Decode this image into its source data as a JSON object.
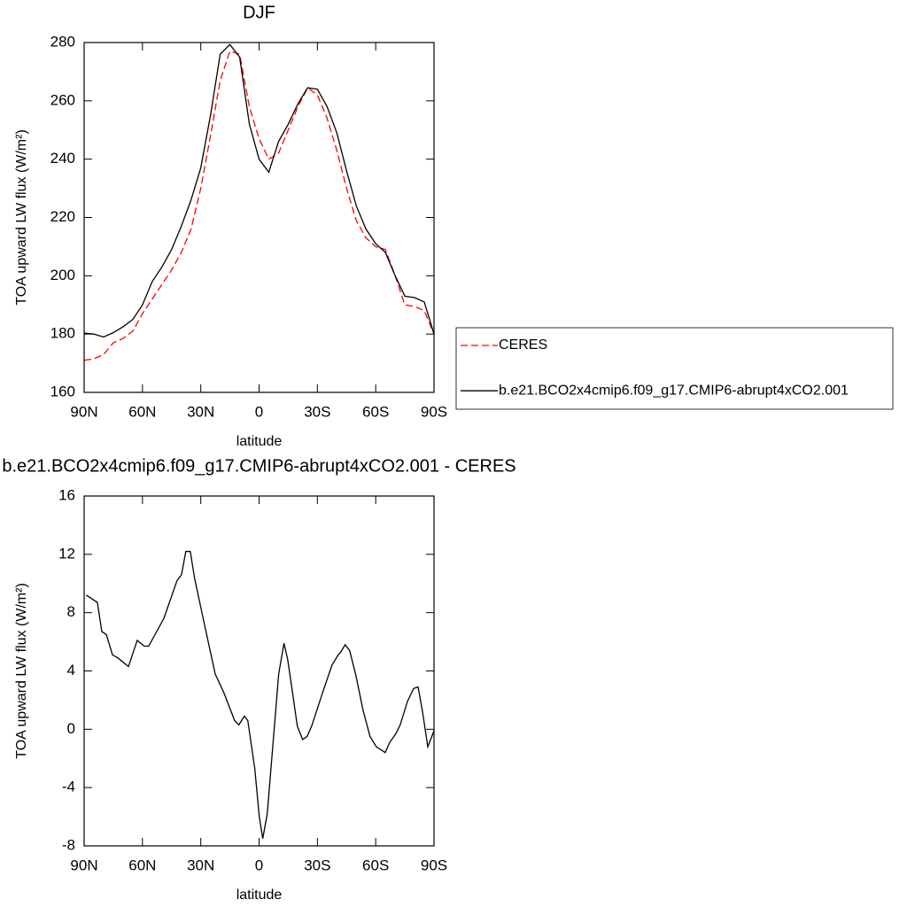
{
  "chart_data": [
    {
      "type": "line",
      "title": "DJF",
      "x_label": "latitude",
      "y_label": "TOA upward LW flux (W/m²)",
      "x": [
        90,
        85,
        80,
        75,
        70,
        65,
        60,
        55,
        50,
        45,
        40,
        35,
        30,
        25,
        20,
        15,
        10,
        5,
        0,
        -5,
        -10,
        -15,
        -20,
        -25,
        -30,
        -35,
        -40,
        -45,
        -50,
        -55,
        -60,
        -65,
        -70,
        -75,
        -80,
        -85,
        -90
      ],
      "series": [
        {
          "name": "CERES",
          "color": "#ff0000",
          "dashed": true,
          "values": [
            171,
            171.5,
            173,
            177,
            178.5,
            181,
            187,
            192,
            197,
            202,
            208,
            216,
            230,
            248,
            267,
            277,
            276,
            258,
            247,
            240,
            242,
            250,
            258,
            264.5,
            262,
            254,
            243,
            230,
            219,
            213,
            210,
            209,
            200,
            190,
            189.5,
            188,
            180
          ]
        },
        {
          "name": "b.e21.BCO2x4cmip6.f09_g17.CMIP6-abrupt4xCO2.001",
          "color": "#000000",
          "dashed": false,
          "values": [
            180.3,
            180,
            179,
            180.5,
            182.5,
            185,
            190,
            198,
            203,
            209,
            217,
            226,
            237,
            255,
            276,
            279.3,
            275,
            252,
            240,
            235.5,
            246,
            252,
            259,
            264.5,
            264,
            258,
            249,
            236,
            224,
            216,
            211,
            208,
            200,
            193,
            192.5,
            191,
            180
          ]
        }
      ],
      "xlim": [
        90,
        -90
      ],
      "xticks": [
        {
          "value": 90,
          "label": "90N"
        },
        {
          "value": 60,
          "label": "60N"
        },
        {
          "value": 30,
          "label": "30N"
        },
        0,
        {
          "value": -30,
          "label": "30S"
        },
        {
          "value": -60,
          "label": "60S"
        },
        {
          "value": -90,
          "label": "90S"
        }
      ],
      "ylim": [
        160,
        280
      ],
      "yticks": [
        160,
        180,
        200,
        220,
        240,
        260,
        280
      ],
      "legend": "right"
    },
    {
      "type": "line",
      "title": "b.e21.BCO2x4cmip6.f09_g17.CMIP6-abrupt4xCO2.001 - CERES",
      "x_label": "latitude",
      "y_label": "TOA upward LW flux (W/m²)",
      "x": [
        89,
        87.7,
        83.2,
        80.9,
        78.6,
        75.4,
        72.7,
        67.2,
        62.7,
        59.1,
        56.8,
        49.0,
        42.2,
        39.9,
        37.7,
        35.4,
        33.1,
        28.6,
        22.6,
        18.1,
        12.6,
        10.4,
        7.6,
        5.8,
        2.2,
        -0.1,
        -1.9,
        -4.2,
        -10.1,
        -12.8,
        -14.7,
        -17.0,
        -19.7,
        -22.4,
        -24.7,
        -27.0,
        -32.9,
        -37.5,
        -40.7,
        -42.0,
        -44.3,
        -46.6,
        -49.8,
        -53.5,
        -57.1,
        -60.3,
        -64.9,
        -67.2,
        -70.4,
        -72.6,
        -76.3,
        -79.5,
        -81.8,
        -84.1,
        -86.8,
        -90
      ],
      "values": [
        9.2,
        9.1,
        8.7,
        6.7,
        6.5,
        5.1,
        4.9,
        4.3,
        6.1,
        5.7,
        5.7,
        7.6,
        10.2,
        10.6,
        12.2,
        12.2,
        10.3,
        7.5,
        3.8,
        2.5,
        0.6,
        0.3,
        0.9,
        0.6,
        -2.7,
        -6,
        -7.5,
        -5.8,
        3.8,
        5.9,
        4.8,
        2.7,
        0.2,
        -0.7,
        -0.5,
        0.2,
        2.6,
        4.4,
        5.1,
        5.3,
        5.8,
        5.4,
        3.7,
        1.3,
        -0.5,
        -1.2,
        -1.6,
        -0.9,
        -0.3,
        0.3,
        1.9,
        2.8,
        2.9,
        1.2,
        -1.2,
        -0.1
      ],
      "color": "#000000",
      "xlim": [
        90,
        -90
      ],
      "xticks": [
        {
          "value": 90,
          "label": "90N"
        },
        {
          "value": 60,
          "label": "60N"
        },
        {
          "value": 30,
          "label": "30N"
        },
        0,
        {
          "value": -30,
          "label": "30S"
        },
        {
          "value": -60,
          "label": "60S"
        },
        {
          "value": -90,
          "label": "90S"
        }
      ],
      "ylim": [
        -8,
        16
      ],
      "yticks": [
        -8,
        -4,
        0,
        4,
        8,
        12,
        16
      ]
    }
  ]
}
